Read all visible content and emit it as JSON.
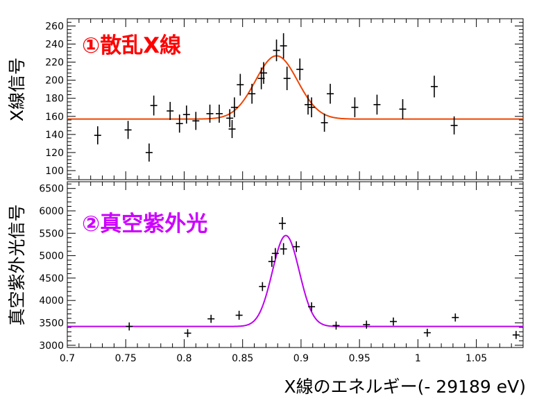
{
  "chart_data": [
    {
      "type": "scatter",
      "title": "①散乱X線",
      "title_color": "#ff0000",
      "ylabel": "X線信号",
      "xlabel": "",
      "xlim": [
        0.7,
        1.09
      ],
      "ylim": [
        90,
        268
      ],
      "yticks": [
        "100",
        "120",
        "140",
        "160",
        "180",
        "200",
        "220",
        "240",
        "260"
      ],
      "fit_color": "#ee4400",
      "fit": {
        "baseline": 157,
        "amplitude": 70,
        "center": 0.879,
        "sigma": 0.018
      },
      "series": [
        {
          "points": [
            {
              "x": 0.726,
              "y": 139,
              "err": 10
            },
            {
              "x": 0.752,
              "y": 145,
              "err": 10
            },
            {
              "x": 0.77,
              "y": 120,
              "err": 10
            },
            {
              "x": 0.774,
              "y": 172,
              "err": 11
            },
            {
              "x": 0.788,
              "y": 166,
              "err": 10
            },
            {
              "x": 0.796,
              "y": 152,
              "err": 10
            },
            {
              "x": 0.802,
              "y": 162,
              "err": 10
            },
            {
              "x": 0.81,
              "y": 155,
              "err": 10
            },
            {
              "x": 0.822,
              "y": 163,
              "err": 10
            },
            {
              "x": 0.83,
              "y": 163,
              "err": 10
            },
            {
              "x": 0.839,
              "y": 158,
              "err": 10
            },
            {
              "x": 0.841,
              "y": 146,
              "err": 10
            },
            {
              "x": 0.843,
              "y": 170,
              "err": 11
            },
            {
              "x": 0.848,
              "y": 195,
              "err": 12
            },
            {
              "x": 0.858,
              "y": 185,
              "err": 11
            },
            {
              "x": 0.866,
              "y": 202,
              "err": 12
            },
            {
              "x": 0.868,
              "y": 208,
              "err": 12
            },
            {
              "x": 0.879,
              "y": 233,
              "err": 12
            },
            {
              "x": 0.885,
              "y": 238,
              "err": 14
            },
            {
              "x": 0.888,
              "y": 202,
              "err": 13
            },
            {
              "x": 0.899,
              "y": 212,
              "err": 12
            },
            {
              "x": 0.906,
              "y": 173,
              "err": 11
            },
            {
              "x": 0.909,
              "y": 170,
              "err": 11
            },
            {
              "x": 0.92,
              "y": 153,
              "err": 10
            },
            {
              "x": 0.925,
              "y": 185,
              "err": 11
            },
            {
              "x": 0.946,
              "y": 170,
              "err": 11
            },
            {
              "x": 0.965,
              "y": 173,
              "err": 11
            },
            {
              "x": 0.987,
              "y": 168,
              "err": 11
            },
            {
              "x": 1.014,
              "y": 193,
              "err": 12
            },
            {
              "x": 1.031,
              "y": 150,
              "err": 10
            }
          ]
        }
      ]
    },
    {
      "type": "scatter",
      "title": "②真空紫外光",
      "title_color": "#cc00ff",
      "ylabel": "真空紫外光信号",
      "xlabel": "X線のエネルギー(- 29189 eV)",
      "xlim": [
        0.7,
        1.09
      ],
      "ylim": [
        2950,
        6650
      ],
      "yticks": [
        "3000",
        "3500",
        "4000",
        "4500",
        "5000",
        "5500",
        "6000",
        "6500"
      ],
      "xticks": [
        "0.7",
        "0.75",
        "0.8",
        "0.85",
        "0.9",
        "0.95",
        "1",
        "1.05"
      ],
      "fit_color": "#bb00ee",
      "fit": {
        "baseline": 3420,
        "amplitude": 2030,
        "center": 0.887,
        "sigma": 0.0115
      },
      "series": [
        {
          "points": [
            {
              "x": 0.753,
              "y": 3420,
              "err": 90
            },
            {
              "x": 0.803,
              "y": 3270,
              "err": 90
            },
            {
              "x": 0.823,
              "y": 3590,
              "err": 90
            },
            {
              "x": 0.847,
              "y": 3670,
              "err": 100
            },
            {
              "x": 0.867,
              "y": 4310,
              "err": 100
            },
            {
              "x": 0.875,
              "y": 4870,
              "err": 120
            },
            {
              "x": 0.878,
              "y": 5050,
              "err": 120
            },
            {
              "x": 0.884,
              "y": 5720,
              "err": 140
            },
            {
              "x": 0.885,
              "y": 5150,
              "err": 130
            },
            {
              "x": 0.896,
              "y": 5200,
              "err": 120
            },
            {
              "x": 0.909,
              "y": 3860,
              "err": 100
            },
            {
              "x": 0.93,
              "y": 3440,
              "err": 90
            },
            {
              "x": 0.956,
              "y": 3460,
              "err": 90
            },
            {
              "x": 0.979,
              "y": 3530,
              "err": 90
            },
            {
              "x": 1.008,
              "y": 3280,
              "err": 90
            },
            {
              "x": 1.032,
              "y": 3620,
              "err": 90
            },
            {
              "x": 1.084,
              "y": 3230,
              "err": 90
            }
          ]
        }
      ]
    }
  ]
}
